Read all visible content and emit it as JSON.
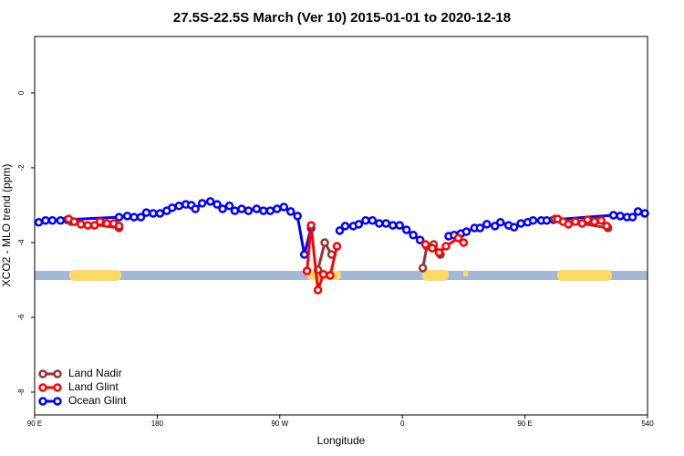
{
  "chart_data": {
    "type": "line",
    "title": "27.5S-22.5S March (Ver 10)   2015-01-01 to 2020-12-18",
    "x_label": "Longitude",
    "y_label": "XCO2 - MLO trend (ppm)",
    "xlim": [
      90,
      540
    ],
    "ylim": [
      -8.61,
      1.51
    ],
    "xticks": [
      {
        "value": 90,
        "label": "90 E"
      },
      180,
      {
        "value": 270,
        "label": "90 W"
      },
      {
        "value": 360,
        "label": "0"
      },
      {
        "value": 450,
        "label": "90 E"
      },
      540
    ],
    "yticks": [
      0,
      -2,
      -4,
      -6,
      -8
    ],
    "legend": "bottom-left",
    "series": [
      {
        "name": "Land Nadir",
        "color": "#993333",
        "x": [
          117,
          152,
          null,
          298,
          303,
          308,
          null,
          375,
          378,
          383,
          388,
          null,
          472,
          511
        ],
        "values": [
          -3.44,
          -3.61,
          null,
          -4.73,
          -4.0,
          -4.32,
          null,
          -4.68,
          -4.1,
          -4.05,
          -4.32,
          null,
          -3.37,
          -3.61
        ]
      },
      {
        "name": "Land Glint",
        "color": "#ff0000",
        "x": [
          115,
          119,
          124,
          129,
          134,
          138,
          143,
          148,
          152,
          null,
          290,
          293,
          298,
          302,
          307,
          312,
          null,
          377,
          382,
          387,
          392,
          401,
          405,
          null,
          474,
          478,
          482,
          487,
          492,
          496,
          501,
          506,
          510
        ],
        "values": [
          -3.37,
          -3.44,
          -3.51,
          -3.54,
          -3.54,
          -3.44,
          -3.49,
          -3.49,
          -3.56,
          null,
          -4.76,
          -3.54,
          -5.27,
          -4.85,
          -4.88,
          -4.1,
          null,
          -4.05,
          -4.15,
          -4.27,
          -4.1,
          -3.88,
          -4.0,
          null,
          -3.37,
          -3.44,
          -3.51,
          -3.44,
          -3.49,
          -3.39,
          -3.44,
          -3.41,
          -3.56
        ]
      },
      {
        "name": "Ocean Glint",
        "color": "#0000ff",
        "x": [
          93,
          98,
          103,
          109,
          114,
          152,
          158,
          163,
          168,
          172,
          177,
          182,
          187,
          191,
          196,
          201,
          205,
          208,
          213,
          219,
          224,
          228,
          233,
          237,
          242,
          247,
          253,
          258,
          263,
          268,
          273,
          278,
          283,
          288,
          293,
          null,
          314,
          318,
          324,
          328,
          333,
          338,
          343,
          348,
          353,
          358,
          363,
          368,
          373,
          null,
          394,
          398,
          403,
          407,
          413,
          417,
          422,
          428,
          432,
          438,
          442,
          447,
          452,
          456,
          462,
          466,
          471,
          515,
          520,
          525,
          529,
          533,
          538
        ],
        "values": [
          -3.46,
          -3.41,
          -3.41,
          -3.41,
          -3.39,
          -3.32,
          -3.29,
          -3.32,
          -3.32,
          -3.2,
          -3.22,
          -3.22,
          -3.15,
          -3.07,
          -3.02,
          -2.98,
          -3.0,
          -3.1,
          -2.95,
          -2.9,
          -2.98,
          -3.1,
          -3.02,
          -3.15,
          -3.1,
          -3.15,
          -3.1,
          -3.15,
          -3.15,
          -3.1,
          -3.05,
          -3.17,
          -3.29,
          -4.32,
          -3.61,
          null,
          -3.68,
          -3.56,
          -3.56,
          -3.51,
          -3.41,
          -3.41,
          -3.49,
          -3.49,
          -3.54,
          -3.54,
          -3.66,
          -3.8,
          -3.93,
          null,
          -3.83,
          -3.8,
          -3.76,
          -3.71,
          -3.61,
          -3.61,
          -3.51,
          -3.56,
          -3.46,
          -3.54,
          -3.59,
          -3.49,
          -3.46,
          -3.41,
          -3.41,
          -3.41,
          -3.39,
          -3.27,
          -3.29,
          -3.32,
          -3.32,
          -3.17,
          -3.22
        ]
      }
    ]
  }
}
